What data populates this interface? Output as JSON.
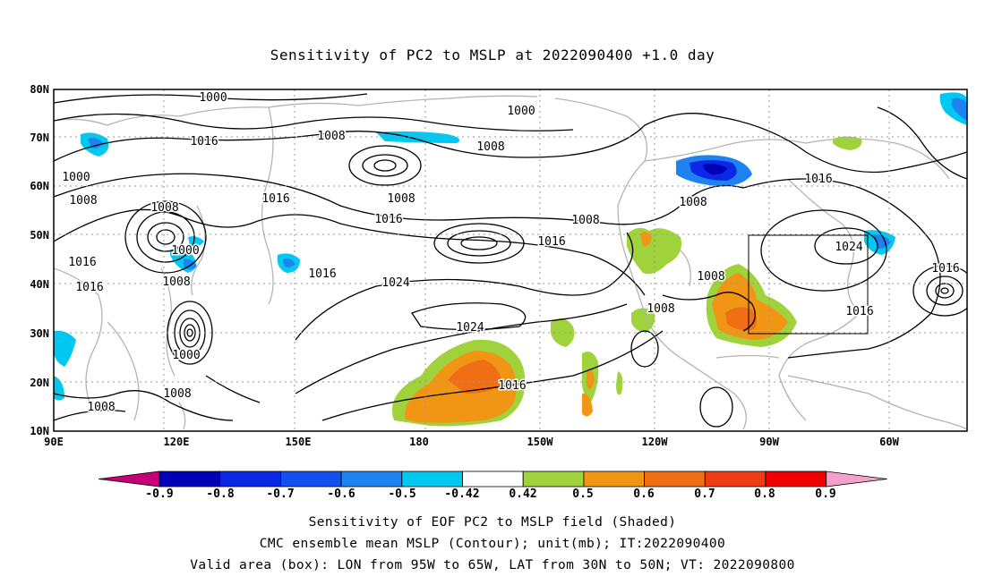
{
  "title": "Sensitivity of PC2 to MSLP at 2022090400 +1.0 day",
  "axes": {
    "lat_labels": [
      "80N",
      "70N",
      "60N",
      "50N",
      "40N",
      "30N",
      "20N",
      "10N"
    ],
    "lon_labels": [
      "90E",
      "120E",
      "150E",
      "180",
      "150W",
      "120W",
      "90W",
      "60W"
    ]
  },
  "contour_labels": [
    {
      "text": "1000"
    },
    {
      "text": "1016"
    },
    {
      "text": "1008"
    },
    {
      "text": "1000"
    },
    {
      "text": "1008"
    },
    {
      "text": "1008"
    },
    {
      "text": "1016"
    },
    {
      "text": "1008"
    },
    {
      "text": "1016"
    },
    {
      "text": "1000"
    },
    {
      "text": "1016"
    },
    {
      "text": "1008"
    },
    {
      "text": "1016"
    },
    {
      "text": "1016"
    },
    {
      "text": "1008"
    },
    {
      "text": "1000"
    },
    {
      "text": "1008"
    },
    {
      "text": "1024"
    },
    {
      "text": "1016"
    },
    {
      "text": "1016"
    },
    {
      "text": "1000"
    },
    {
      "text": "1008"
    },
    {
      "text": "1008"
    },
    {
      "text": "1016"
    },
    {
      "text": "1024"
    },
    {
      "text": "1016"
    },
    {
      "text": "1000"
    },
    {
      "text": "1008"
    },
    {
      "text": "1024"
    },
    {
      "text": "1016"
    },
    {
      "text": "1016"
    },
    {
      "text": "1016"
    },
    {
      "text": "1008"
    },
    {
      "text": "1008"
    }
  ],
  "colorbar": {
    "labels": [
      "-0.9",
      "-0.8",
      "-0.7",
      "-0.6",
      "-0.5",
      "-0.42",
      "0.42",
      "0.5",
      "0.6",
      "0.7",
      "0.8",
      "0.9"
    ],
    "colors": [
      "#c80078",
      "#0000b4",
      "#0a28e6",
      "#1450f0",
      "#1e82f0",
      "#00c8f0",
      "#ffffff",
      "#a0d23c",
      "#f09614",
      "#f06e14",
      "#f03c14",
      "#f00000",
      "#f5a0c8"
    ]
  },
  "captions": [
    "Sensitivity of EOF PC2 to MSLP field (Shaded)",
    "CMC ensemble mean MSLP (Contour); unit(mb); IT:2022090400",
    "Valid area (box): LON from 95W to 65W, LAT from 30N to 50N; VT: 2022090800"
  ]
}
